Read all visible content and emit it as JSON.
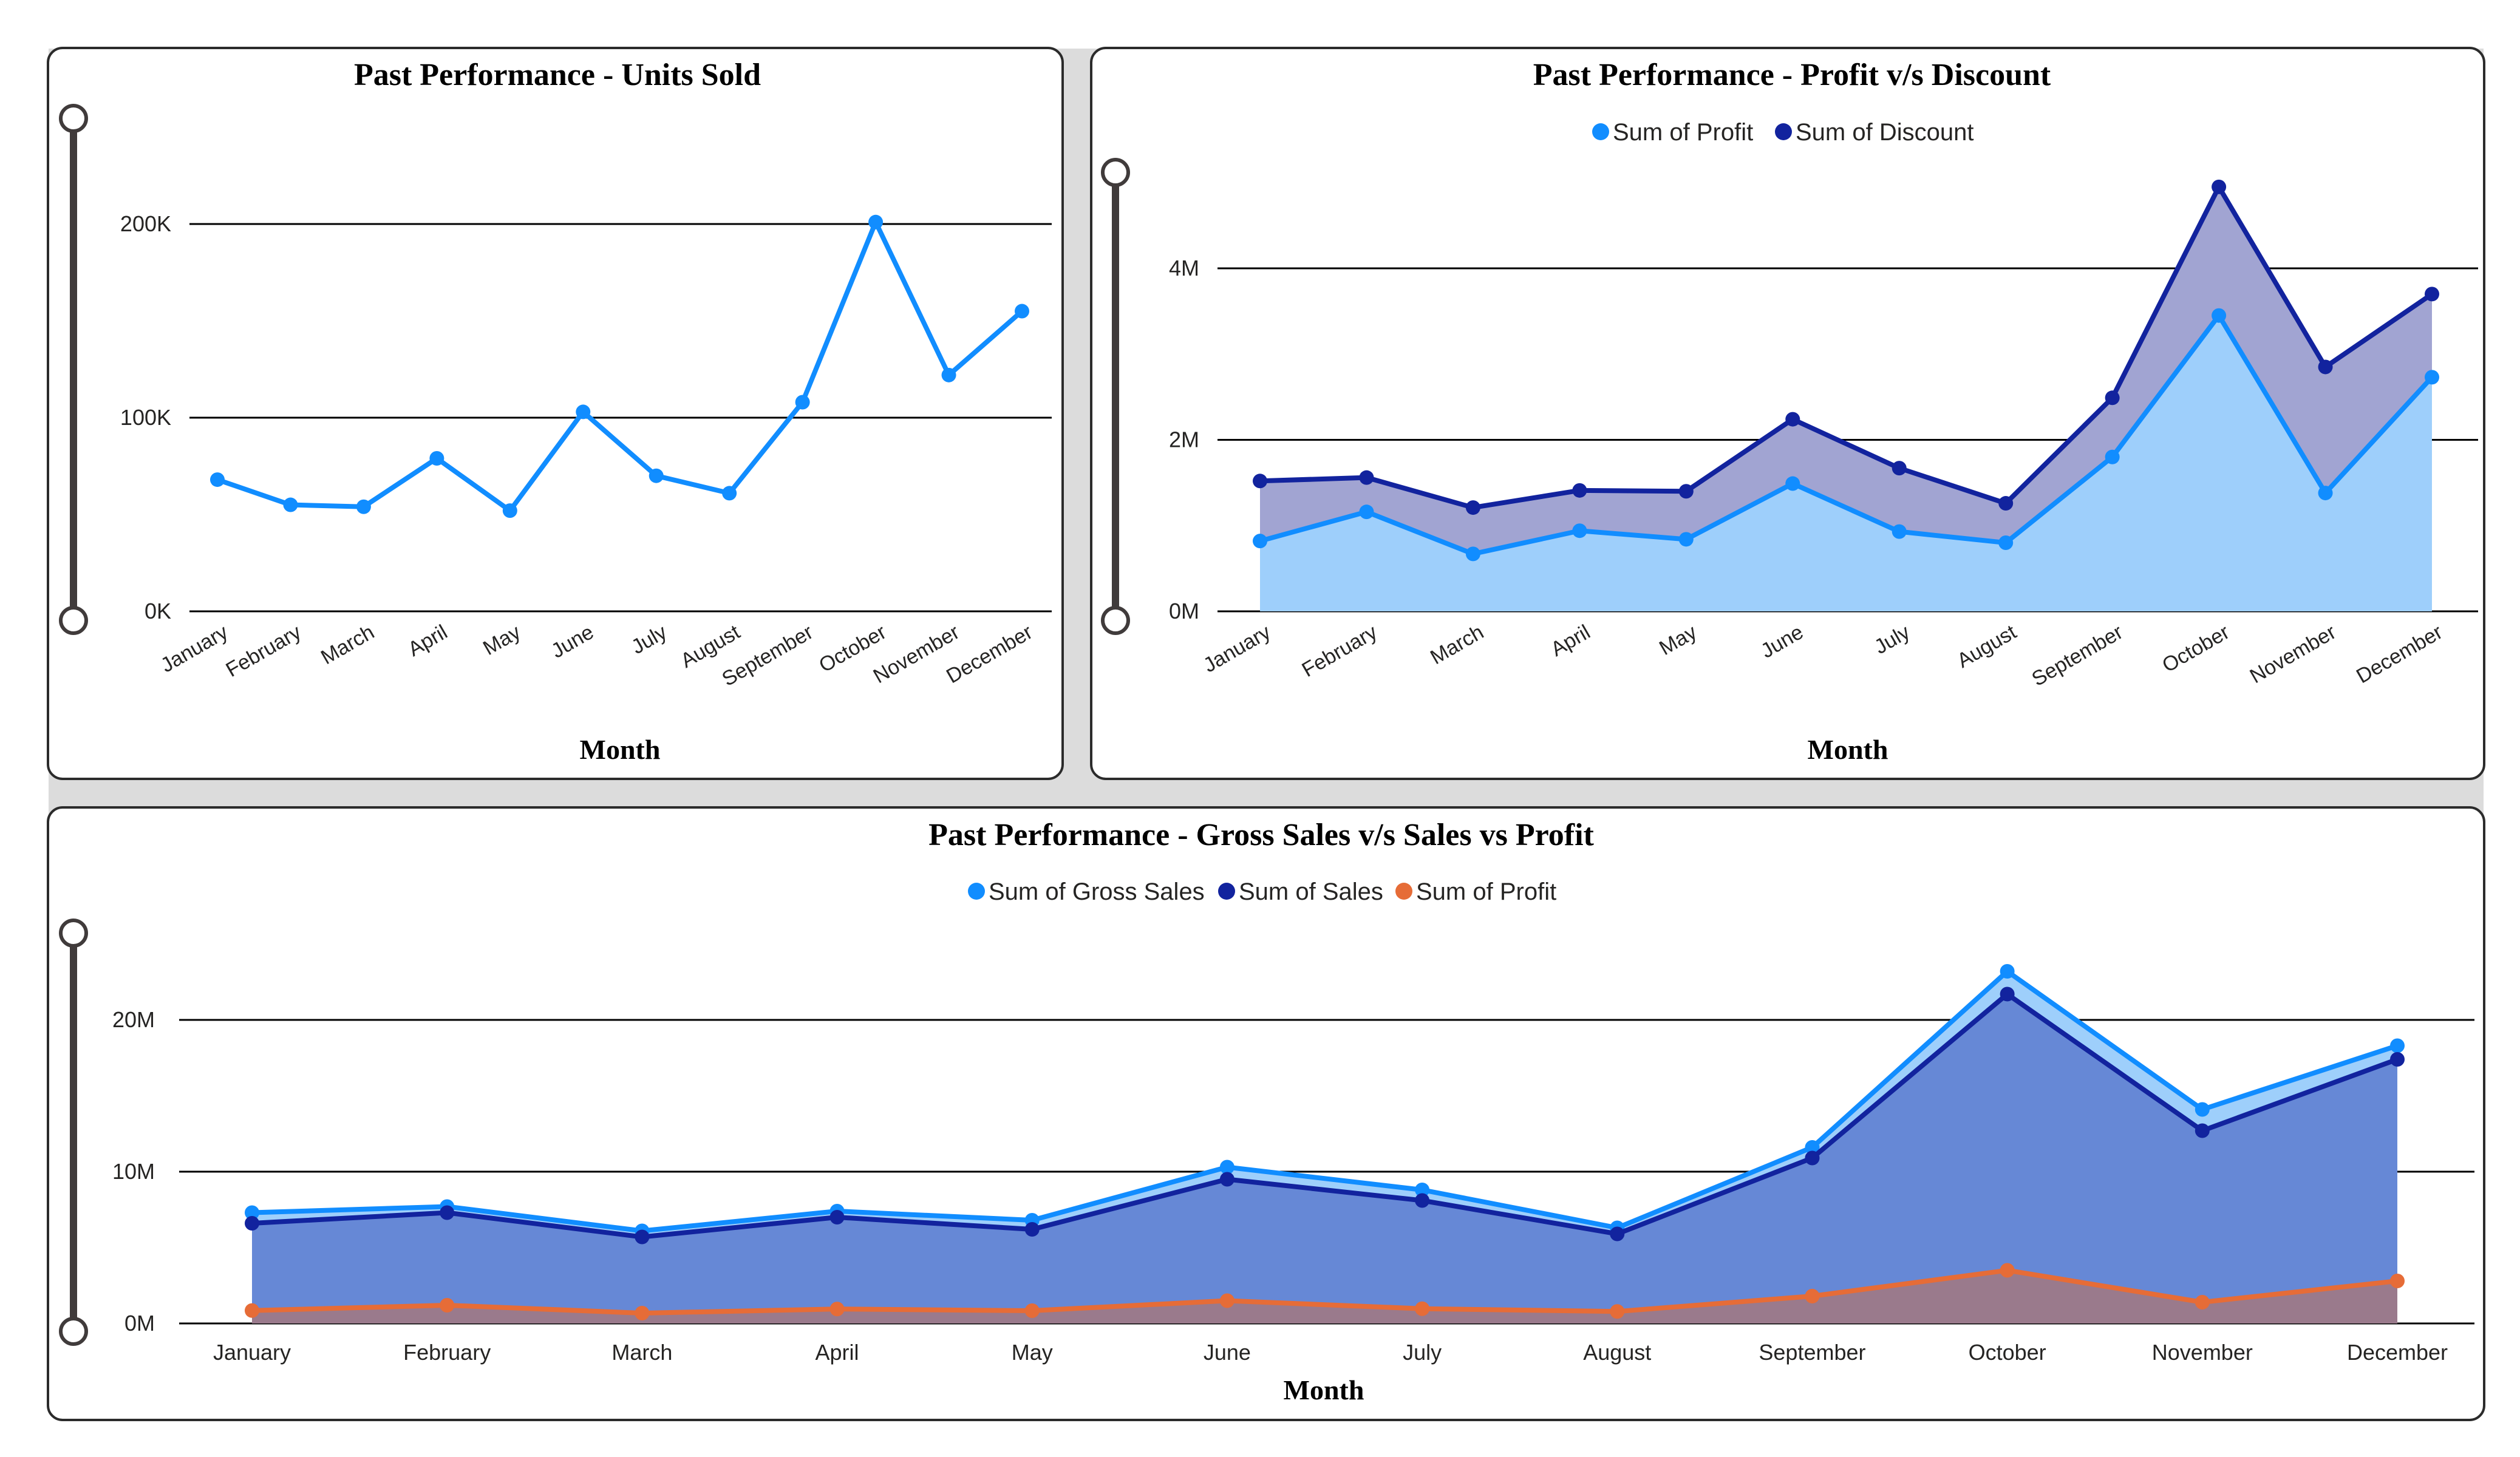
{
  "colors": {
    "light_blue": "#118dff",
    "dark_blue": "#12239e",
    "orange": "#e66c37",
    "axis_text": "#252423",
    "gridline": "#000000",
    "slider": "#403b3b"
  },
  "months": [
    "January",
    "February",
    "March",
    "April",
    "May",
    "June",
    "July",
    "August",
    "September",
    "October",
    "November",
    "December"
  ],
  "chart_data": [
    {
      "id": "units",
      "type": "line",
      "title": "Past Performance - Units Sold",
      "xlabel": "Month",
      "ylabel": "",
      "yticks": [
        "0K",
        "100K",
        "200K"
      ],
      "ylim": [
        0,
        200000
      ],
      "grid": true,
      "legend": "none",
      "series": [
        {
          "values": [
            68000,
            55000,
            54000,
            79000,
            52000,
            103000,
            70000,
            61000,
            108000,
            201000,
            122000,
            155000
          ]
        }
      ]
    },
    {
      "id": "profit_discount",
      "type": "area",
      "title": "Past Performance - Profit v/s Discount",
      "xlabel": "Month",
      "ylabel": "",
      "yticks": [
        "0M",
        "2M",
        "4M"
      ],
      "ylim": [
        0,
        4000000
      ],
      "grid": true,
      "legend": "top-center",
      "series": [
        {
          "name": "Sum of Profit",
          "values": [
            820000,
            1160000,
            670000,
            940000,
            840000,
            1490000,
            930000,
            800000,
            1800000,
            3450000,
            1380000,
            2730000
          ]
        },
        {
          "name": "Sum of Discount",
          "values": [
            1520000,
            1560000,
            1210000,
            1410000,
            1400000,
            2240000,
            1670000,
            1260000,
            2490000,
            4950000,
            2850000,
            3700000
          ]
        }
      ]
    },
    {
      "id": "gross_sales",
      "type": "area",
      "title": "Past Performance - Gross Sales v/s Sales vs Profit",
      "xlabel": "Month",
      "ylabel": "",
      "yticks": [
        "0M",
        "10M",
        "20M"
      ],
      "ylim": [
        0,
        20000000
      ],
      "grid": true,
      "legend": "top-center",
      "series": [
        {
          "name": "Sum of Gross Sales",
          "values": [
            7300000,
            7700000,
            6100000,
            7400000,
            6800000,
            10300000,
            8800000,
            6300000,
            11600000,
            23200000,
            14100000,
            18300000
          ]
        },
        {
          "name": "Sum of Sales",
          "values": [
            6600000,
            7300000,
            5700000,
            7000000,
            6200000,
            9500000,
            8100000,
            5900000,
            10900000,
            21700000,
            12700000,
            17400000
          ]
        },
        {
          "name": "Sum of Profit",
          "values": [
            850000,
            1200000,
            680000,
            950000,
            840000,
            1500000,
            970000,
            790000,
            1800000,
            3500000,
            1400000,
            2800000
          ]
        }
      ]
    }
  ]
}
